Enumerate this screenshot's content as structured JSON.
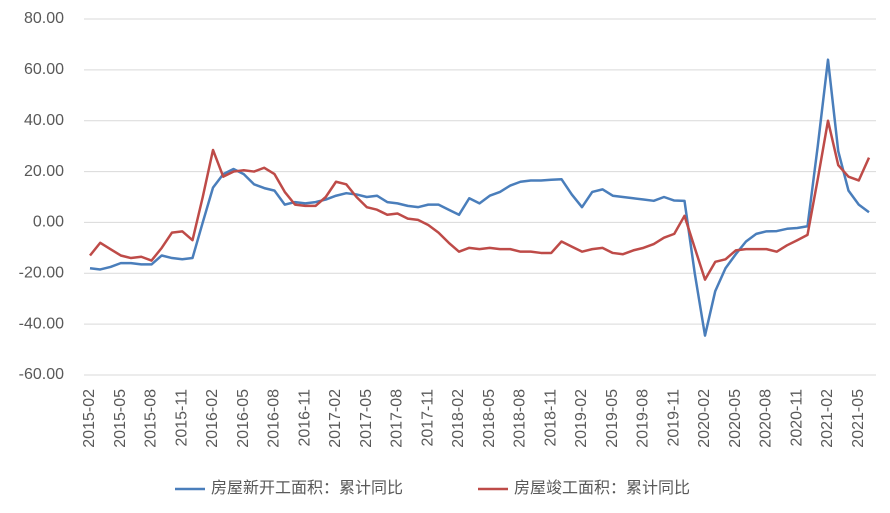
{
  "chart_data": {
    "type": "line",
    "categories": [
      "2015-02",
      null,
      null,
      "2015-05",
      null,
      null,
      "2015-08",
      null,
      null,
      "2015-11",
      null,
      null,
      "2016-02",
      null,
      null,
      "2016-05",
      null,
      null,
      "2016-08",
      null,
      null,
      "2016-11",
      null,
      null,
      "2017-02",
      null,
      null,
      "2017-05",
      null,
      null,
      "2017-08",
      null,
      null,
      "2017-11",
      null,
      null,
      "2018-02",
      null,
      null,
      "2018-05",
      null,
      null,
      "2018-08",
      null,
      null,
      "2018-11",
      null,
      null,
      "2019-02",
      null,
      null,
      "2019-05",
      null,
      null,
      "2019-08",
      null,
      null,
      "2019-11",
      null,
      null,
      "2020-02",
      null,
      null,
      "2020-05",
      null,
      null,
      "2020-08",
      null,
      null,
      "2020-11",
      null,
      null,
      "2021-02",
      null,
      null,
      "2021-05",
      null
    ],
    "series": [
      {
        "name": "房屋新开工面积：累计同比",
        "color": "#4a7ebb",
        "values": [
          -18,
          -18.5,
          -17.5,
          -16,
          -16,
          -16.5,
          -16.5,
          -13,
          -14,
          -14.5,
          -14,
          0,
          13.7,
          19,
          21,
          19,
          15,
          13.5,
          12.5,
          7,
          8,
          7.5,
          8,
          9,
          10.5,
          11.5,
          11,
          10,
          10.5,
          8,
          7.5,
          6.5,
          6,
          7,
          7,
          5,
          3,
          9.5,
          7.5,
          10.5,
          12,
          14.5,
          16,
          16.5,
          16.5,
          16.8,
          17,
          11,
          6,
          12,
          13,
          10.5,
          10,
          9.5,
          9,
          8.5,
          10,
          8.6,
          8.5,
          -20,
          -44.5,
          -27,
          -18,
          -12.5,
          -7.5,
          -4.5,
          -3.5,
          -3.4,
          -2.5,
          -2.2,
          -1.5,
          30,
          64,
          28,
          12.5,
          7,
          4
        ]
      },
      {
        "name": "房屋竣工面积：累计同比",
        "color": "#be4b48",
        "values": [
          -13,
          -8,
          -10.5,
          -13,
          -14,
          -13.5,
          -15,
          -10,
          -4,
          -3.5,
          -7,
          10,
          28.5,
          18,
          20,
          20.5,
          20,
          21.5,
          19,
          12,
          7,
          6.5,
          6.5,
          10,
          16,
          15,
          10,
          6,
          5,
          3,
          3.5,
          1.5,
          1,
          -1,
          -4,
          -8,
          -11.5,
          -10,
          -10.5,
          -10,
          -10.5,
          -10.5,
          -11.5,
          -11.5,
          -12,
          -12,
          -7.5,
          -9.5,
          -11.5,
          -10.5,
          -10,
          -12,
          -12.5,
          -11,
          -10,
          -8.5,
          -6,
          -4.5,
          2.6,
          -10,
          -22.5,
          -15.5,
          -14.5,
          -11,
          -10.5,
          -10.5,
          -10.5,
          -11.5,
          -9,
          -7,
          -4.9,
          17,
          40,
          22.5,
          18,
          16.5,
          25.5
        ]
      }
    ],
    "ylim": [
      -60,
      80
    ],
    "yticks": [
      {
        "value": -60,
        "label": "-60.00"
      },
      {
        "value": -40,
        "label": "-40.00"
      },
      {
        "value": -20,
        "label": "-20.00"
      },
      {
        "value": 0,
        "label": "0.00"
      },
      {
        "value": 20,
        "label": "20.00"
      },
      {
        "value": 40,
        "label": "40.00"
      },
      {
        "value": 60,
        "label": "60.00"
      },
      {
        "value": 80,
        "label": "80.00"
      }
    ],
    "grid": true,
    "legend": "bottom"
  }
}
